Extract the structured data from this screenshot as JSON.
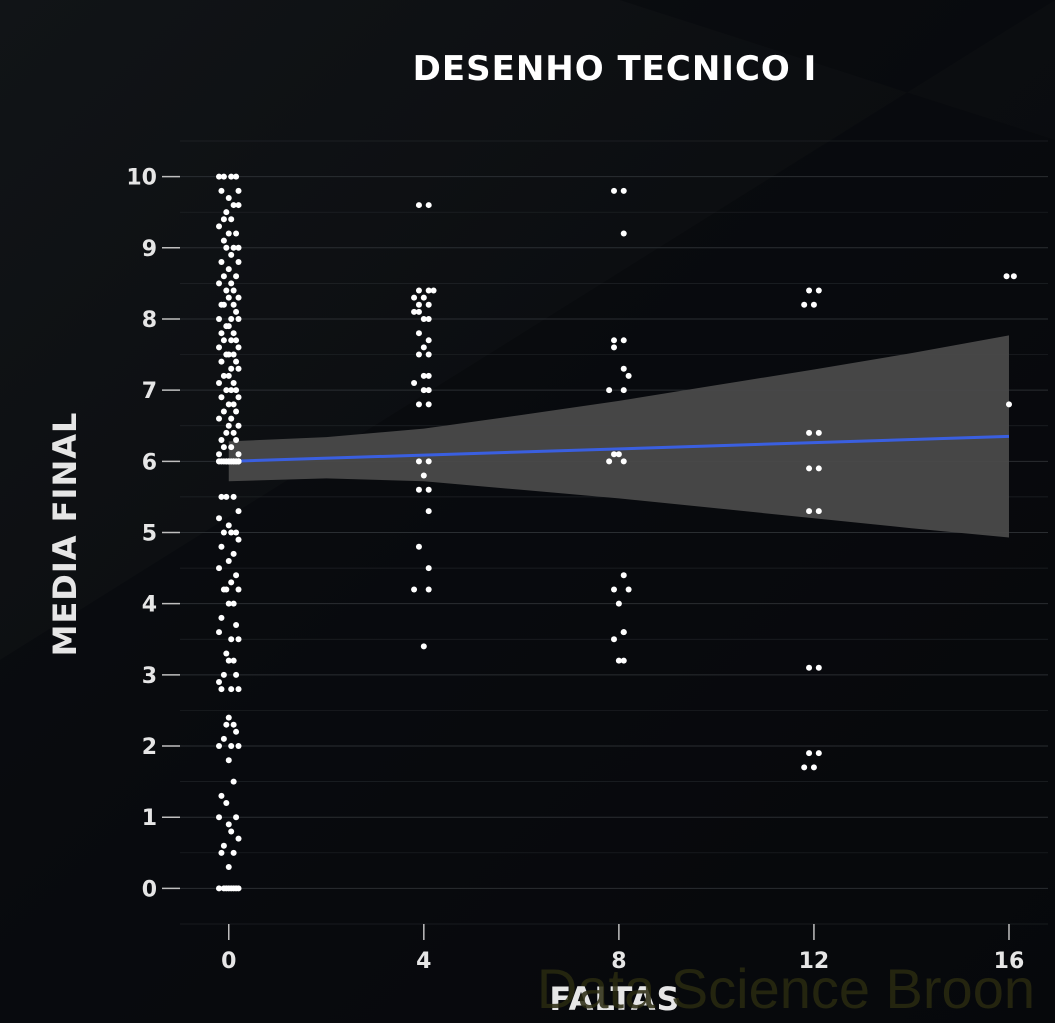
{
  "chart_data": {
    "type": "scatter",
    "title": "DESENHO TECNICO I",
    "xlabel": "FALTAS",
    "ylabel": "MEDIA FINAL",
    "xlim": [
      -1,
      16.8
    ],
    "ylim": [
      -0.5,
      10.5
    ],
    "x_ticks": [
      0,
      4,
      8,
      12,
      16
    ],
    "y_ticks": [
      0,
      1,
      2,
      3,
      4,
      5,
      6,
      7,
      8,
      9,
      10
    ],
    "grid": true,
    "watermark": "Data Science Broon",
    "colors": {
      "background": "#07090c",
      "points": "#ffffff",
      "trend_line": "#3a5fe0",
      "confidence_band": "#4a4a4a",
      "grid": "#2e3236",
      "text": "#e6e6e6",
      "watermark": "#2a2a10"
    },
    "trend_line": {
      "x": [
        0,
        16
      ],
      "y": [
        6.0,
        6.35
      ]
    },
    "confidence_band": {
      "x": [
        0,
        2,
        4,
        6,
        8,
        10,
        12,
        14,
        16
      ],
      "upper": [
        6.28,
        6.34,
        6.46,
        6.65,
        6.85,
        7.07,
        7.29,
        7.52,
        7.77
      ],
      "lower": [
        5.72,
        5.76,
        5.72,
        5.6,
        5.48,
        5.34,
        5.2,
        5.06,
        4.93
      ]
    },
    "series": [
      {
        "x": [
          -0.2,
          -0.1,
          0.05,
          0.15,
          0.2,
          -0.15,
          0.0,
          0.1,
          -0.05,
          0.2,
          -0.1,
          0.05,
          -0.2,
          0.15,
          0.0,
          -0.1,
          0.1,
          0.2,
          -0.05,
          0.05,
          -0.15,
          0.2,
          0.0,
          -0.1,
          0.15,
          -0.2,
          0.05,
          0.1,
          -0.05,
          0.2,
          0.0,
          -0.15,
          0.1,
          -0.1,
          0.15,
          0.05,
          -0.2,
          0.2,
          0.0,
          -0.05,
          0.1,
          -0.15,
          0.15,
          -0.1,
          0.05,
          0.2,
          -0.2,
          0.0,
          0.1,
          -0.05,
          0.15,
          -0.15,
          0.05,
          0.2,
          -0.1,
          0.0,
          0.1,
          -0.2,
          0.15,
          -0.05,
          0.05,
          0.2,
          -0.15,
          0.0,
          0.1,
          -0.1,
          0.15,
          -0.2,
          0.05,
          0.2,
          0.0,
          -0.05,
          0.1,
          -0.15,
          0.15,
          -0.1,
          0.05,
          0.2,
          -0.2,
          0.0,
          0.1,
          0.15,
          -0.05,
          0.2,
          -0.15,
          0.0,
          0.05,
          -0.1,
          0.1,
          0.2,
          -0.2,
          0.15,
          0.0,
          -0.05,
          0.1,
          -0.15,
          0.2,
          0.05,
          -0.1,
          0.15,
          0.0,
          -0.2,
          0.1,
          0.05,
          -0.05,
          0.2,
          -0.15,
          -0.05,
          0.1,
          0.2,
          -0.2,
          0.0,
          0.15,
          0.05,
          -0.1,
          0.2,
          -0.15,
          0.1,
          0.0,
          -0.2,
          0.15,
          0.05,
          -0.05,
          0.2,
          -0.1,
          0.1,
          0.0,
          -0.15,
          0.15,
          -0.2,
          0.05,
          0.2,
          -0.05,
          0.1,
          0.0,
          -0.1,
          0.15,
          -0.2,
          0.05,
          0.2,
          -0.15,
          0.0,
          0.1,
          -0.05,
          0.15,
          -0.1,
          0.05,
          -0.2,
          0.2,
          0.0,
          0.1,
          -0.15,
          -0.05,
          0.15,
          -0.2,
          0.0,
          0.05,
          0.2,
          -0.1,
          0.1,
          -0.15,
          0.0,
          0.15,
          -0.05,
          0.05,
          0.2,
          -0.2,
          0.0,
          0.1,
          -0.1
        ],
        "y": [
          10.0,
          10.0,
          10.0,
          10.0,
          9.8,
          9.8,
          9.7,
          9.6,
          9.5,
          9.6,
          9.4,
          9.4,
          9.3,
          9.2,
          9.2,
          9.1,
          9.0,
          9.0,
          9.0,
          8.9,
          8.8,
          8.8,
          8.7,
          8.6,
          8.6,
          8.5,
          8.5,
          8.4,
          8.4,
          8.3,
          8.3,
          8.2,
          8.2,
          8.2,
          8.1,
          8.0,
          8.0,
          8.0,
          7.9,
          7.9,
          7.8,
          7.8,
          7.7,
          7.7,
          7.7,
          7.6,
          7.6,
          7.5,
          7.5,
          7.5,
          7.4,
          7.4,
          7.3,
          7.3,
          7.2,
          7.2,
          7.1,
          7.1,
          7.0,
          7.0,
          7.0,
          6.9,
          6.9,
          6.8,
          6.8,
          6.7,
          6.7,
          6.6,
          6.6,
          6.5,
          6.5,
          6.4,
          6.4,
          6.3,
          6.3,
          6.2,
          6.2,
          6.1,
          6.1,
          6.0,
          6.0,
          6.0,
          6.0,
          6.0,
          6.0,
          6.0,
          6.0,
          6.0,
          6.0,
          6.0,
          6.0,
          6.0,
          6.0,
          6.0,
          6.0,
          6.0,
          6.0,
          6.0,
          6.0,
          6.0,
          6.0,
          6.0,
          6.0,
          6.0,
          6.0,
          6.0,
          5.5,
          5.5,
          5.5,
          5.3,
          5.2,
          5.1,
          5.0,
          5.0,
          5.0,
          4.9,
          4.8,
          4.7,
          4.6,
          4.5,
          4.4,
          4.3,
          4.2,
          4.2,
          4.2,
          4.0,
          4.0,
          3.8,
          3.7,
          3.6,
          3.5,
          3.5,
          3.3,
          3.2,
          3.2,
          3.0,
          3.0,
          2.9,
          2.8,
          2.8,
          2.8,
          2.4,
          2.3,
          2.3,
          2.2,
          2.1,
          2.0,
          2.0,
          2.0,
          1.8,
          1.5,
          1.3,
          1.2,
          1.0,
          1.0,
          0.9,
          0.8,
          0.7,
          0.6,
          0.5,
          0.5,
          0.3,
          0.0,
          0.0,
          0.0,
          0.0,
          0.0,
          0.0,
          0.0,
          0.0
        ]
      },
      {
        "x": [
          3.9,
          4.1,
          3.8,
          3.9,
          4.0,
          4.1,
          4.2,
          3.9,
          4.1,
          3.9,
          4.0,
          4.1,
          3.8,
          3.9,
          4.1,
          4.0,
          3.9,
          4.1,
          4.0,
          4.1,
          3.8,
          4.0,
          4.1,
          3.9,
          4.1,
          3.9,
          4.1,
          4.0,
          4.1,
          3.9,
          4.1,
          3.9,
          4.1,
          4.1,
          3.8,
          4.0
        ],
        "y": [
          9.6,
          9.6,
          8.3,
          8.4,
          8.3,
          8.4,
          8.4,
          8.2,
          8.2,
          8.1,
          8.0,
          8.0,
          8.1,
          7.8,
          7.7,
          7.6,
          7.5,
          7.5,
          7.2,
          7.2,
          7.1,
          7.0,
          7.0,
          6.8,
          6.8,
          6.0,
          6.0,
          5.8,
          5.6,
          5.6,
          5.3,
          4.8,
          4.5,
          4.2,
          4.2,
          3.4
        ]
      },
      {
        "x": [
          7.9,
          8.1,
          8.1,
          7.9,
          8.1,
          7.9,
          8.1,
          8.2,
          7.8,
          8.1,
          7.9,
          8.0,
          8.1,
          7.8,
          8.1,
          7.9,
          8.2,
          8.0,
          8.1,
          7.9,
          8.1,
          8.0,
          8.1
        ],
        "y": [
          9.8,
          9.8,
          9.2,
          7.7,
          7.7,
          7.6,
          7.3,
          7.2,
          7.0,
          7.0,
          6.1,
          6.1,
          6.0,
          6.0,
          4.4,
          4.2,
          4.2,
          4.0,
          3.6,
          3.5,
          3.2,
          3.2,
          3.6
        ]
      },
      {
        "x": [
          11.9,
          12.1,
          11.8,
          12.0,
          11.9,
          12.1,
          11.9,
          12.1,
          11.9,
          12.1,
          11.9,
          12.1,
          11.9,
          12.1,
          11.8,
          12.0
        ],
        "y": [
          8.4,
          8.4,
          8.2,
          8.2,
          6.4,
          6.4,
          5.9,
          5.9,
          5.3,
          5.3,
          3.1,
          3.1,
          1.9,
          1.9,
          1.7,
          1.7
        ]
      },
      {
        "x": [
          15.95,
          16.1,
          16.0
        ],
        "y": [
          8.6,
          8.6,
          6.8
        ]
      }
    ]
  }
}
